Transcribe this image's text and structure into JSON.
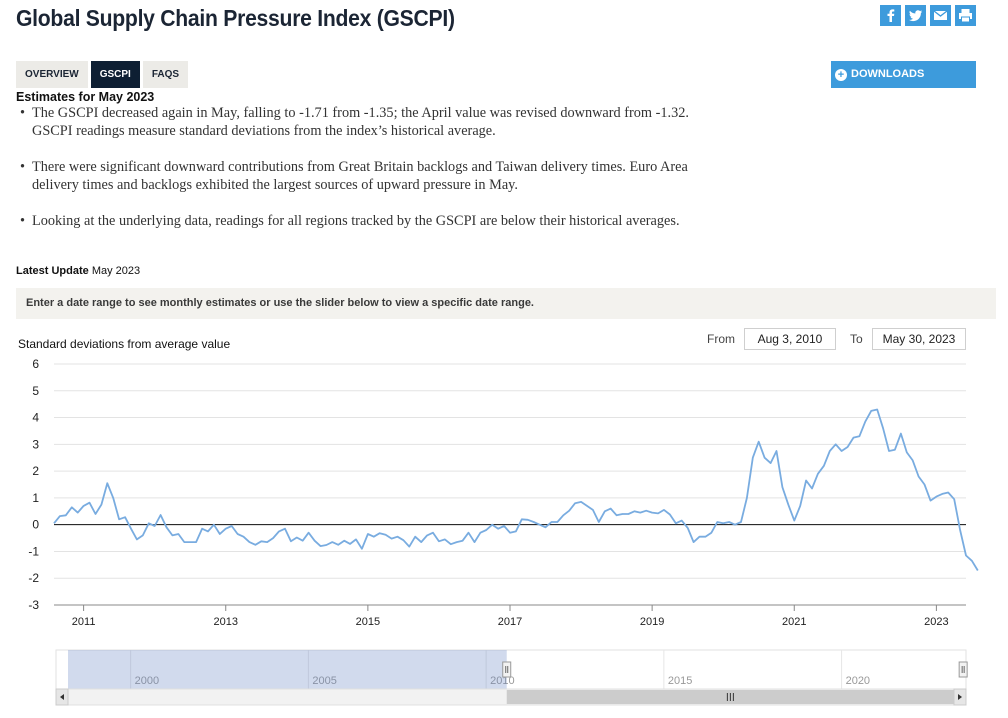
{
  "page": {
    "title": "Global Supply Chain Pressure Index (GSCPI)",
    "share_icons": [
      "facebook-icon",
      "twitter-icon",
      "email-icon",
      "print-icon"
    ],
    "accent_color": "#3d9bdc",
    "dark_color": "#0e1f33"
  },
  "tabs": [
    {
      "label": "OVERVIEW",
      "active": false
    },
    {
      "label": "GSCPI",
      "active": true
    },
    {
      "label": "FAQS",
      "active": false
    }
  ],
  "downloads": {
    "label": "DOWNLOADS",
    "icon": "plus-circle-icon"
  },
  "estimates": {
    "heading": "Estimates for May 2023",
    "bullets": [
      "The GSCPI decreased again in May, falling to -1.71 from -1.35; the April value was revised downward from -1.32. GSCPI readings measure standard deviations from the index’s historical average.",
      "There were significant downward contributions from Great Britain backlogs and Taiwan delivery times. Euro Area delivery times and backlogs exhibited the largest sources of upward pressure in May.",
      "Looking at the underlying data, readings for all regions tracked by the GSCPI are below their historical averages."
    ]
  },
  "latest_update": {
    "label": "Latest Update",
    "value": "May 2023"
  },
  "instructions": "Enter a date range to see monthly estimates or use the slider below to view a specific date range.",
  "range": {
    "from_label": "From",
    "from_value": "Aug 3, 2010",
    "to_label": "To",
    "to_value": "May 30, 2023"
  },
  "chart_data": {
    "type": "line",
    "ylabel": "Standard deviations from average value",
    "ylim": [
      -3,
      6
    ],
    "yticks": [
      6,
      5,
      4,
      3,
      2,
      1,
      0,
      -1,
      -2,
      -3
    ],
    "xlim": [
      "2010-08",
      "2023-06"
    ],
    "xticks": [
      "2011",
      "2013",
      "2015",
      "2017",
      "2019",
      "2021",
      "2023"
    ],
    "line_color": "#79ace0",
    "grid": true,
    "series": [
      {
        "start": "2010-08",
        "values": [
          0.05,
          0.32,
          0.35,
          0.65,
          0.45,
          0.7,
          0.82,
          0.4,
          0.75,
          1.55,
          1.0,
          0.2,
          0.28,
          -0.15,
          -0.55,
          -0.4,
          0.05,
          -0.05,
          0.36,
          -0.1,
          -0.4,
          -0.35,
          -0.65,
          -0.65,
          -0.65,
          -0.15,
          -0.25,
          0.0,
          -0.35,
          -0.15,
          -0.05,
          -0.35,
          -0.45,
          -0.65,
          -0.75,
          -0.62,
          -0.65,
          -0.5,
          -0.25,
          -0.15,
          -0.62,
          -0.48,
          -0.6,
          -0.3,
          -0.6,
          -0.8,
          -0.76,
          -0.65,
          -0.75,
          -0.6,
          -0.72,
          -0.55,
          -0.9,
          -0.35,
          -0.45,
          -0.32,
          -0.38,
          -0.52,
          -0.45,
          -0.58,
          -0.82,
          -0.45,
          -0.65,
          -0.4,
          -0.3,
          -0.62,
          -0.55,
          -0.73,
          -0.65,
          -0.6,
          -0.3,
          -0.65,
          -0.3,
          -0.2,
          0.0,
          -0.15,
          -0.05,
          -0.3,
          -0.25,
          0.2,
          0.18,
          0.1,
          0.0,
          -0.1,
          0.1,
          0.1,
          0.35,
          0.52,
          0.8,
          0.85,
          0.7,
          0.55,
          0.1,
          0.5,
          0.6,
          0.35,
          0.4,
          0.4,
          0.5,
          0.45,
          0.52,
          0.45,
          0.42,
          0.55,
          0.38,
          0.05,
          0.15,
          -0.12,
          -0.65,
          -0.45,
          -0.45,
          -0.3,
          0.1,
          0.05,
          0.1,
          0.0,
          0.1,
          1.0,
          2.5,
          3.1,
          2.5,
          2.3,
          2.75,
          1.4,
          0.75,
          0.15,
          0.7,
          1.65,
          1.35,
          1.9,
          2.2,
          2.75,
          3.0,
          2.75,
          2.9,
          3.25,
          3.3,
          3.85,
          4.25,
          4.3,
          3.6,
          2.75,
          2.8,
          3.4,
          2.7,
          2.4,
          1.8,
          1.5,
          0.9,
          1.05,
          1.15,
          1.2,
          0.95,
          -0.2,
          -1.15,
          -1.35,
          -1.71
        ]
      }
    ]
  },
  "navigator": {
    "labels": [
      "2000",
      "2005",
      "2010",
      "2015",
      "2020"
    ],
    "selection_start": 2010.58,
    "selection_end": 2023.42,
    "axis_start": 1997.9,
    "axis_end": 2023.5
  }
}
